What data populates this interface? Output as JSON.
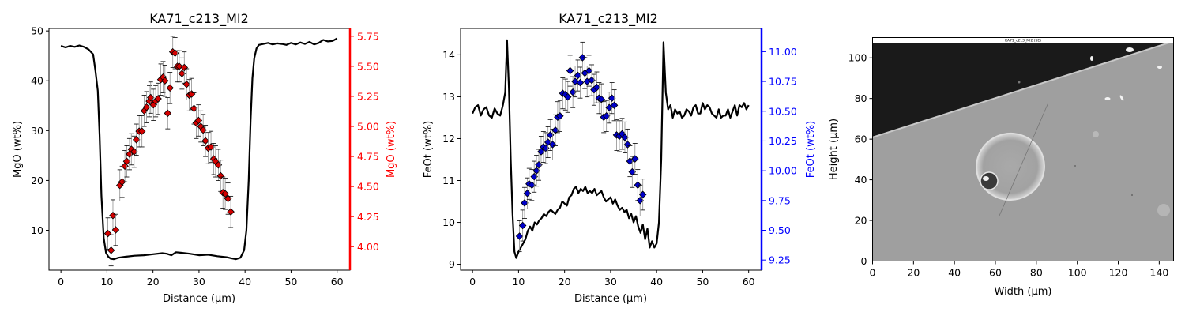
{
  "colors": {
    "profile": "#000000",
    "mgo_axis": "#ff0000",
    "mgo_points": "#d40000",
    "feo_axis": "#0000ff",
    "feo_points": "#0000c8",
    "errorbar": "#000000",
    "errorbar_light": "#909090"
  },
  "chart_data": [
    {
      "type": "line",
      "title": "KA71_c213_MI2",
      "xlabel": "Distance (µm)",
      "ylabel": "MgO (wt%)",
      "y2label": "MgO (wt%)",
      "xlim": [
        -2.6,
        62.8
      ],
      "ylim": [
        2.0,
        50.5
      ],
      "y2lim": [
        3.805,
        5.815
      ],
      "xticks": [
        "0",
        "10",
        "20",
        "30",
        "40",
        "50",
        "60"
      ],
      "yticks": [
        "10",
        "20",
        "30",
        "40",
        "50"
      ],
      "y2ticks": [
        "4.00",
        "4.25",
        "4.50",
        "4.75",
        "5.00",
        "5.25",
        "5.50",
        "5.75"
      ],
      "grid": false,
      "profile": {
        "axis": "left",
        "x": [
          0,
          1,
          2,
          3,
          4,
          5,
          6,
          7,
          7.5,
          8,
          8.4,
          8.8,
          9.3,
          9.8,
          10.3,
          10.8,
          11.5,
          12.5,
          14,
          16,
          18,
          20,
          22,
          23,
          24,
          25,
          26,
          28,
          30,
          32,
          34,
          36,
          37,
          38,
          39,
          39.8,
          40.3,
          40.8,
          41.2,
          41.6,
          42,
          42.5,
          43,
          44,
          45,
          46,
          47,
          48,
          49,
          50,
          51,
          52,
          53,
          54,
          55,
          56,
          57,
          58,
          59,
          60
        ],
        "y": [
          47.0,
          46.7,
          47.0,
          46.8,
          47.1,
          46.8,
          46.3,
          45.3,
          42.0,
          38.0,
          29.0,
          17.0,
          8.5,
          5.5,
          4.7,
          4.3,
          4.2,
          4.5,
          4.7,
          4.9,
          5.0,
          5.2,
          5.4,
          5.3,
          5.0,
          5.6,
          5.5,
          5.3,
          5.0,
          5.1,
          4.8,
          4.6,
          4.4,
          4.2,
          4.5,
          6.0,
          10.0,
          20.0,
          32.0,
          40.5,
          44.5,
          46.5,
          47.2,
          47.4,
          47.6,
          47.3,
          47.5,
          47.4,
          47.2,
          47.6,
          47.3,
          47.7,
          47.4,
          47.8,
          47.3,
          47.6,
          48.2,
          47.9,
          48.0,
          48.5
        ]
      },
      "points": {
        "axis": "right",
        "x": [
          10.2,
          10.9,
          11.3,
          11.9,
          12.8,
          13.3,
          13.9,
          14.3,
          14.9,
          15.3,
          15.9,
          16.4,
          17.0,
          17.6,
          18.1,
          18.6,
          19.2,
          19.5,
          20.1,
          20.6,
          21.1,
          21.7,
          22.2,
          22.6,
          23.2,
          23.7,
          24.3,
          24.8,
          25.3,
          25.7,
          26.3,
          26.8,
          27.3,
          27.9,
          28.4,
          28.9,
          29.4,
          29.9,
          30.4,
          30.9,
          31.4,
          32.0,
          32.6,
          33.2,
          33.6,
          34.2,
          34.7,
          35.2,
          35.7,
          36.3,
          36.9
        ],
        "y": [
          4.11,
          3.97,
          4.26,
          4.14,
          4.51,
          4.54,
          4.67,
          4.71,
          4.77,
          4.81,
          4.79,
          4.89,
          4.96,
          4.96,
          5.13,
          5.16,
          5.21,
          5.24,
          5.18,
          5.21,
          5.23,
          5.39,
          5.41,
          5.38,
          5.11,
          5.32,
          5.62,
          5.61,
          5.5,
          5.5,
          5.44,
          5.49,
          5.35,
          5.26,
          5.27,
          5.15,
          5.03,
          5.05,
          5.0,
          4.97,
          4.88,
          4.82,
          4.83,
          4.73,
          4.71,
          4.68,
          4.59,
          4.45,
          4.44,
          4.4,
          4.29
        ],
        "yerr": [
          0.13,
          0.13,
          0.13,
          0.13,
          0.13,
          0.13,
          0.13,
          0.13,
          0.13,
          0.13,
          0.13,
          0.13,
          0.13,
          0.13,
          0.13,
          0.13,
          0.13,
          0.13,
          0.13,
          0.13,
          0.13,
          0.13,
          0.13,
          0.13,
          0.13,
          0.13,
          0.13,
          0.13,
          0.13,
          0.13,
          0.13,
          0.13,
          0.13,
          0.13,
          0.13,
          0.13,
          0.13,
          0.13,
          0.13,
          0.13,
          0.13,
          0.13,
          0.13,
          0.13,
          0.13,
          0.13,
          0.13,
          0.13,
          0.13,
          0.13,
          0.13
        ]
      }
    },
    {
      "type": "line",
      "title": "KA71_c213_MI2",
      "xlabel": "Distance (µm)",
      "ylabel": "FeOt (wt%)",
      "y2label": "FeOt (wt%)",
      "xlim": [
        -2.6,
        62.8
      ],
      "ylim": [
        8.86,
        14.63
      ],
      "y2lim": [
        9.165,
        11.195
      ],
      "xticks": [
        "0",
        "10",
        "20",
        "30",
        "40",
        "50",
        "60"
      ],
      "yticks": [
        "9",
        "10",
        "11",
        "12",
        "13",
        "14"
      ],
      "y2ticks": [
        "9.25",
        "9.50",
        "9.75",
        "10.00",
        "10.25",
        "10.50",
        "10.75",
        "11.00"
      ],
      "grid": false,
      "profile": {
        "axis": "left",
        "x": [
          0,
          0.6,
          1.2,
          1.8,
          2.4,
          3,
          3.6,
          4.2,
          4.8,
          5.4,
          6,
          6.6,
          7.1,
          7.5,
          7.9,
          8.3,
          8.7,
          9.1,
          9.5,
          10,
          10.5,
          11,
          11.5,
          12,
          12.5,
          13,
          13.5,
          14,
          14.5,
          15,
          15.5,
          16,
          16.5,
          17,
          17.5,
          18,
          18.5,
          19,
          19.5,
          20,
          20.5,
          21,
          21.5,
          22,
          22.5,
          23,
          23.5,
          24,
          24.5,
          25,
          25.5,
          26,
          26.5,
          27,
          27.5,
          28,
          28.5,
          29,
          29.5,
          30,
          30.5,
          31,
          31.5,
          32,
          32.5,
          33,
          33.5,
          34,
          34.5,
          35,
          35.5,
          36,
          36.5,
          37,
          37.5,
          38,
          38.5,
          39,
          39.5,
          40,
          40.5,
          41,
          41.5,
          42,
          42.5,
          43,
          43.5,
          44,
          44.5,
          45,
          45.5,
          46,
          46.5,
          47,
          47.5,
          48,
          48.5,
          49,
          49.5,
          50,
          50.5,
          51,
          51.5,
          52,
          52.5,
          53,
          53.5,
          54,
          54.5,
          55,
          55.5,
          56,
          56.5,
          57,
          57.5,
          58,
          58.5,
          59,
          59.5,
          60
        ],
        "y": [
          12.6,
          12.75,
          12.8,
          12.55,
          12.7,
          12.75,
          12.55,
          12.5,
          12.72,
          12.6,
          12.55,
          12.8,
          13.1,
          14.35,
          13.2,
          11.5,
          10.2,
          9.3,
          9.15,
          9.3,
          9.4,
          9.5,
          9.6,
          9.8,
          9.9,
          9.8,
          10.0,
          9.95,
          10.05,
          10.1,
          10.2,
          10.15,
          10.25,
          10.3,
          10.25,
          10.2,
          10.3,
          10.35,
          10.5,
          10.45,
          10.4,
          10.6,
          10.65,
          10.8,
          10.85,
          10.7,
          10.8,
          10.75,
          10.85,
          10.7,
          10.75,
          10.7,
          10.8,
          10.65,
          10.7,
          10.75,
          10.6,
          10.5,
          10.55,
          10.6,
          10.45,
          10.55,
          10.4,
          10.3,
          10.35,
          10.25,
          10.3,
          10.1,
          10.2,
          10.0,
          10.15,
          9.9,
          9.75,
          9.95,
          9.6,
          9.85,
          9.4,
          9.55,
          9.4,
          9.5,
          10.0,
          11.5,
          14.3,
          13.1,
          12.7,
          12.8,
          12.5,
          12.7,
          12.6,
          12.65,
          12.5,
          12.55,
          12.7,
          12.65,
          12.55,
          12.75,
          12.8,
          12.6,
          12.6,
          12.85,
          12.7,
          12.8,
          12.75,
          12.6,
          12.55,
          12.5,
          12.7,
          12.5,
          12.55,
          12.55,
          12.7,
          12.5,
          12.65,
          12.8,
          12.55,
          12.8,
          12.75,
          12.85,
          12.7,
          12.8
        ]
      },
      "points": {
        "axis": "right",
        "x": [
          10.2,
          10.9,
          11.3,
          11.9,
          12.3,
          12.9,
          13.4,
          13.9,
          14.4,
          14.9,
          15.4,
          15.9,
          16.4,
          16.9,
          17.4,
          18.0,
          18.5,
          19.0,
          19.6,
          20.2,
          20.7,
          21.2,
          21.8,
          22.3,
          22.9,
          23.4,
          23.9,
          24.4,
          24.9,
          25.3,
          25.9,
          26.4,
          27.0,
          27.5,
          28.0,
          28.5,
          29.1,
          29.7,
          30.3,
          30.8,
          31.3,
          31.9,
          32.5,
          33.1,
          33.7,
          34.2,
          34.7,
          35.3,
          35.9,
          36.4,
          37.0
        ],
        "y": [
          9.45,
          9.54,
          9.73,
          9.81,
          9.89,
          9.88,
          9.95,
          10.0,
          10.05,
          10.16,
          10.2,
          10.19,
          10.24,
          10.3,
          10.22,
          10.34,
          10.45,
          10.46,
          10.65,
          10.64,
          10.62,
          10.84,
          10.66,
          10.75,
          10.8,
          10.74,
          10.95,
          10.82,
          10.75,
          10.84,
          10.76,
          10.68,
          10.7,
          10.61,
          10.6,
          10.45,
          10.46,
          10.53,
          10.61,
          10.55,
          10.3,
          10.29,
          10.31,
          10.28,
          10.22,
          10.08,
          9.99,
          10.1,
          9.88,
          9.75,
          9.8
        ],
        "yerr": [
          0.13,
          0.13,
          0.13,
          0.13,
          0.13,
          0.13,
          0.13,
          0.13,
          0.13,
          0.13,
          0.13,
          0.13,
          0.13,
          0.13,
          0.13,
          0.13,
          0.13,
          0.13,
          0.13,
          0.13,
          0.13,
          0.13,
          0.13,
          0.13,
          0.13,
          0.13,
          0.13,
          0.13,
          0.13,
          0.13,
          0.13,
          0.13,
          0.13,
          0.13,
          0.13,
          0.13,
          0.13,
          0.13,
          0.13,
          0.13,
          0.13,
          0.13,
          0.13,
          0.13,
          0.13,
          0.13,
          0.13,
          0.13,
          0.13,
          0.13,
          0.13
        ]
      }
    },
    {
      "type": "image",
      "title": "",
      "image_title": "KA71_c213_MI2 (SE)",
      "xlabel": "Width (µm)",
      "ylabel": "Height (µm)",
      "xlim": [
        0,
        147
      ],
      "ylim": [
        0,
        110
      ],
      "xticks": [
        "0",
        "20",
        "40",
        "60",
        "80",
        "100",
        "120",
        "140"
      ],
      "yticks": [
        "0",
        "20",
        "40",
        "60",
        "80",
        "100"
      ],
      "grid": false
    }
  ]
}
